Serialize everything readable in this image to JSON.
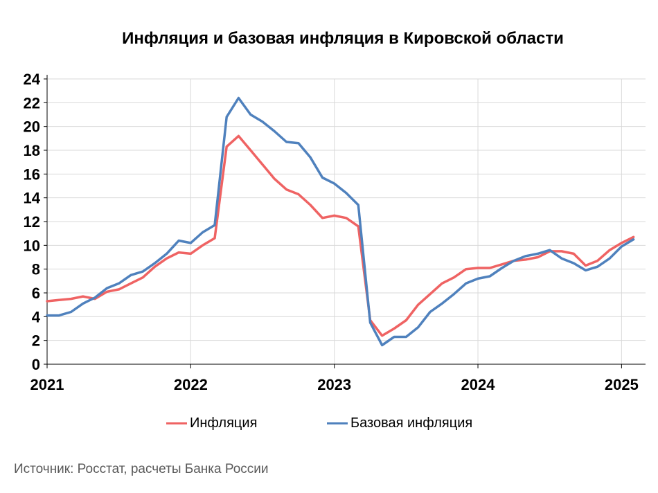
{
  "chart_data": {
    "type": "line",
    "title": "Инфляция и базовая инфляция в Кировской области",
    "xlabel": "",
    "ylabel": "",
    "x_ticks": [
      "2021",
      "2022",
      "2023",
      "2024",
      "2025"
    ],
    "xlim": [
      2021,
      2025.167
    ],
    "ylim": [
      0,
      24
    ],
    "y_ticks": [
      "0",
      "2",
      "4",
      "6",
      "8",
      "10",
      "12",
      "14",
      "16",
      "18",
      "20",
      "22",
      "24"
    ],
    "grid": true,
    "legend_position": "bottom",
    "series": [
      {
        "name": "Инфляция",
        "color": "#ef6363",
        "values": [
          [
            2021.0,
            5.3
          ],
          [
            2021.083,
            5.4
          ],
          [
            2021.167,
            5.5
          ],
          [
            2021.25,
            5.7
          ],
          [
            2021.333,
            5.5
          ],
          [
            2021.417,
            6.1
          ],
          [
            2021.5,
            6.3
          ],
          [
            2021.583,
            6.8
          ],
          [
            2021.667,
            7.3
          ],
          [
            2021.75,
            8.2
          ],
          [
            2021.833,
            8.9
          ],
          [
            2021.917,
            9.4
          ],
          [
            2022.0,
            9.3
          ],
          [
            2022.083,
            10.0
          ],
          [
            2022.167,
            10.6
          ],
          [
            2022.25,
            18.3
          ],
          [
            2022.333,
            19.2
          ],
          [
            2022.417,
            18.0
          ],
          [
            2022.5,
            16.8
          ],
          [
            2022.583,
            15.6
          ],
          [
            2022.667,
            14.7
          ],
          [
            2022.75,
            14.3
          ],
          [
            2022.833,
            13.4
          ],
          [
            2022.917,
            12.3
          ],
          [
            2023.0,
            12.5
          ],
          [
            2023.083,
            12.3
          ],
          [
            2023.167,
            11.6
          ],
          [
            2023.25,
            3.7
          ],
          [
            2023.333,
            2.4
          ],
          [
            2023.417,
            3.0
          ],
          [
            2023.5,
            3.7
          ],
          [
            2023.583,
            5.0
          ],
          [
            2023.667,
            5.9
          ],
          [
            2023.75,
            6.8
          ],
          [
            2023.833,
            7.3
          ],
          [
            2023.917,
            8.0
          ],
          [
            2024.0,
            8.1
          ],
          [
            2024.083,
            8.1
          ],
          [
            2024.167,
            8.4
          ],
          [
            2024.25,
            8.7
          ],
          [
            2024.333,
            8.8
          ],
          [
            2024.417,
            9.0
          ],
          [
            2024.5,
            9.5
          ],
          [
            2024.583,
            9.5
          ],
          [
            2024.667,
            9.3
          ],
          [
            2024.75,
            8.3
          ],
          [
            2024.833,
            8.7
          ],
          [
            2024.917,
            9.6
          ],
          [
            2025.0,
            10.2
          ],
          [
            2025.083,
            10.7
          ]
        ]
      },
      {
        "name": "Базовая инфляция",
        "color": "#4f81bd",
        "values": [
          [
            2021.0,
            4.1
          ],
          [
            2021.083,
            4.1
          ],
          [
            2021.167,
            4.4
          ],
          [
            2021.25,
            5.1
          ],
          [
            2021.333,
            5.6
          ],
          [
            2021.417,
            6.4
          ],
          [
            2021.5,
            6.8
          ],
          [
            2021.583,
            7.5
          ],
          [
            2021.667,
            7.8
          ],
          [
            2021.75,
            8.5
          ],
          [
            2021.833,
            9.3
          ],
          [
            2021.917,
            10.4
          ],
          [
            2022.0,
            10.2
          ],
          [
            2022.083,
            11.1
          ],
          [
            2022.167,
            11.7
          ],
          [
            2022.25,
            20.8
          ],
          [
            2022.333,
            22.4
          ],
          [
            2022.417,
            21.0
          ],
          [
            2022.5,
            20.4
          ],
          [
            2022.583,
            19.6
          ],
          [
            2022.667,
            18.7
          ],
          [
            2022.75,
            18.6
          ],
          [
            2022.833,
            17.4
          ],
          [
            2022.917,
            15.7
          ],
          [
            2023.0,
            15.2
          ],
          [
            2023.083,
            14.4
          ],
          [
            2023.167,
            13.4
          ],
          [
            2023.25,
            3.5
          ],
          [
            2023.333,
            1.6
          ],
          [
            2023.417,
            2.3
          ],
          [
            2023.5,
            2.3
          ],
          [
            2023.583,
            3.1
          ],
          [
            2023.667,
            4.4
          ],
          [
            2023.75,
            5.1
          ],
          [
            2023.833,
            5.9
          ],
          [
            2023.917,
            6.8
          ],
          [
            2024.0,
            7.2
          ],
          [
            2024.083,
            7.4
          ],
          [
            2024.167,
            8.1
          ],
          [
            2024.25,
            8.7
          ],
          [
            2024.333,
            9.1
          ],
          [
            2024.417,
            9.3
          ],
          [
            2024.5,
            9.6
          ],
          [
            2024.583,
            8.9
          ],
          [
            2024.667,
            8.5
          ],
          [
            2024.75,
            7.9
          ],
          [
            2024.833,
            8.2
          ],
          [
            2024.917,
            8.9
          ],
          [
            2025.0,
            9.9
          ],
          [
            2025.083,
            10.5
          ]
        ]
      }
    ]
  },
  "source_note": "Источник: Росстат, расчеты Банка России"
}
